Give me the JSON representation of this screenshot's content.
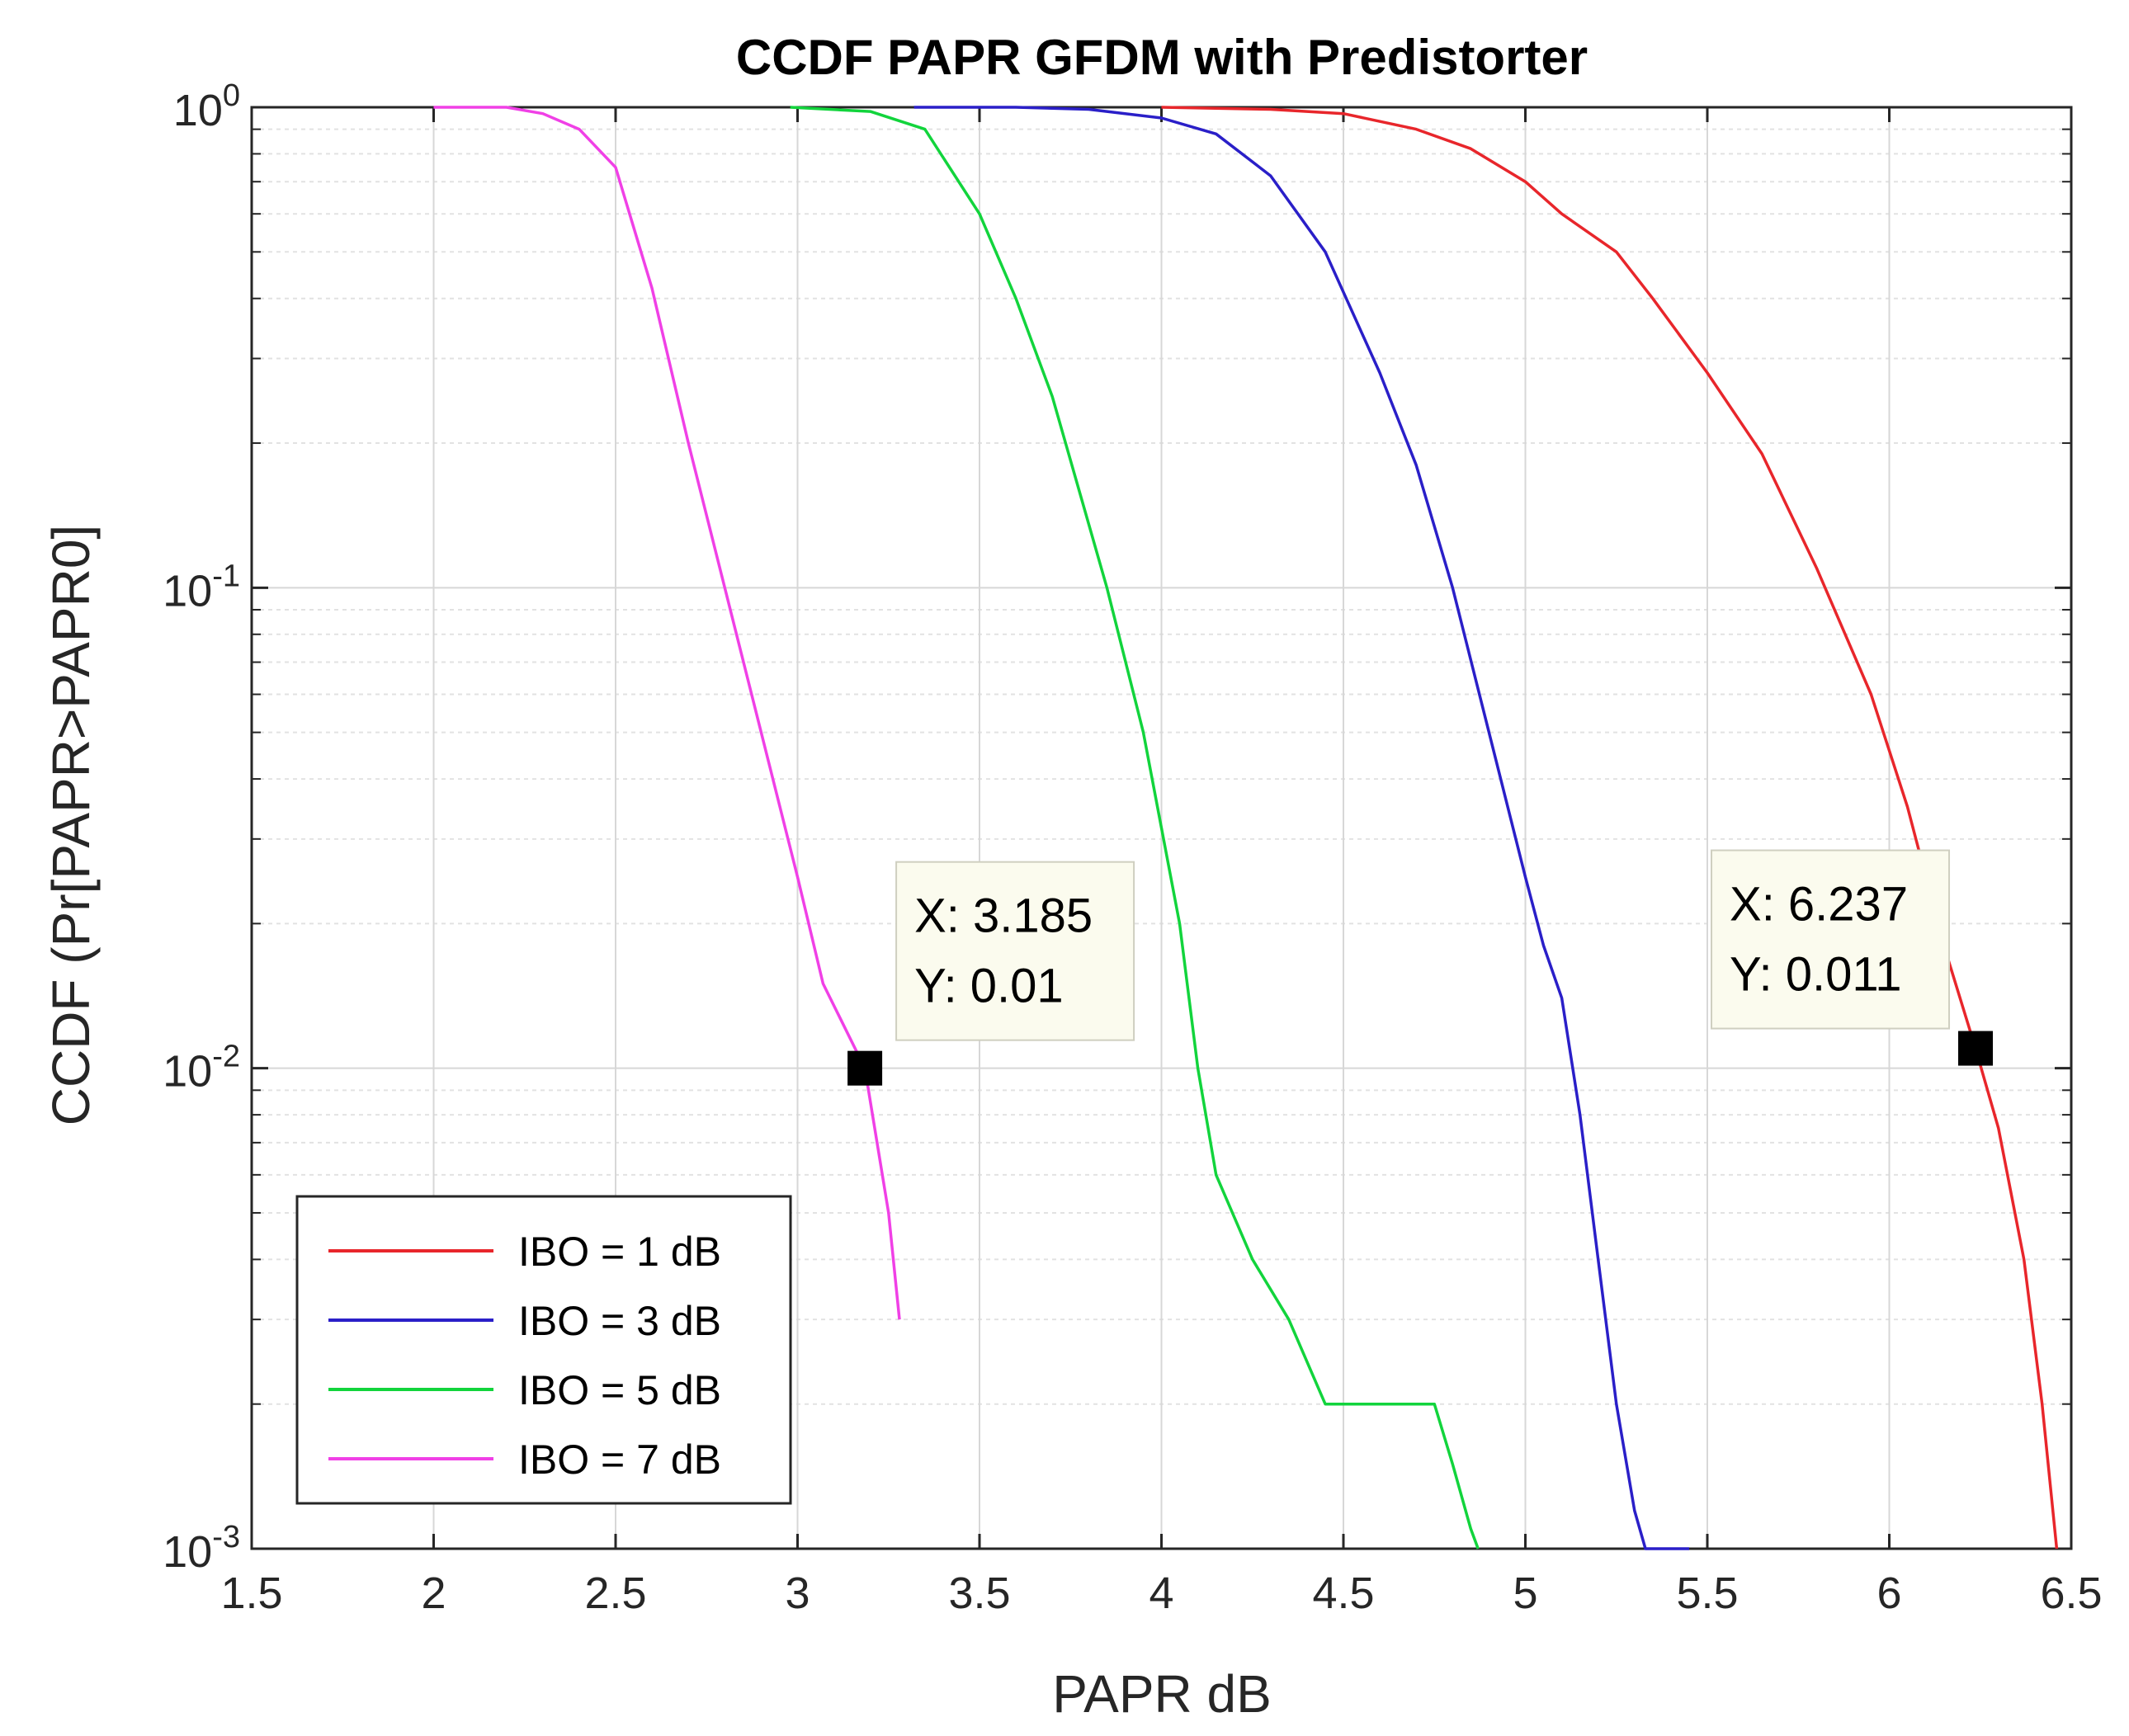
{
  "chart_data": {
    "type": "line",
    "title": "CCDF PAPR GFDM with Predistorter",
    "xlabel": "PAPR dB",
    "ylabel": "CCDF (Pr[PAPR>PAPR0]",
    "xlim": [
      1.5,
      6.5
    ],
    "ylim": [
      0.001,
      1
    ],
    "yscale": "log",
    "grid": true,
    "legend_position": "bottom-left",
    "x_ticks": [
      "1.5",
      "2",
      "2.5",
      "3",
      "3.5",
      "4",
      "4.5",
      "5",
      "5.5",
      "6",
      "6.5"
    ],
    "y_ticks": [
      {
        "base": "10",
        "exp": "0"
      },
      {
        "base": "10",
        "exp": "-1"
      },
      {
        "base": "10",
        "exp": "-2"
      },
      {
        "base": "10",
        "exp": "-3"
      }
    ],
    "series": [
      {
        "name": "IBO = 1 dB",
        "color": "#e8262b",
        "x": [
          4.0,
          4.3,
          4.5,
          4.7,
          4.85,
          5.0,
          5.1,
          5.25,
          5.35,
          5.5,
          5.65,
          5.8,
          5.95,
          6.05,
          6.15,
          6.237,
          6.3,
          6.37,
          6.42,
          6.46
        ],
        "y": [
          1.0,
          0.99,
          0.97,
          0.9,
          0.82,
          0.7,
          0.6,
          0.5,
          0.4,
          0.28,
          0.19,
          0.11,
          0.06,
          0.035,
          0.018,
          0.011,
          0.0075,
          0.004,
          0.002,
          0.001
        ]
      },
      {
        "name": "IBO = 3 dB",
        "color": "#2a1fc8",
        "x": [
          3.32,
          3.6,
          3.8,
          4.0,
          4.15,
          4.3,
          4.45,
          4.6,
          4.7,
          4.8,
          4.9,
          5.0,
          5.05,
          5.1,
          5.15,
          5.2,
          5.25,
          5.3,
          5.33,
          5.45
        ],
        "y": [
          1.0,
          1.0,
          0.99,
          0.95,
          0.88,
          0.72,
          0.5,
          0.28,
          0.18,
          0.1,
          0.05,
          0.025,
          0.018,
          0.014,
          0.008,
          0.004,
          0.002,
          0.0012,
          0.001,
          0.001
        ]
      },
      {
        "name": "IBO = 5 dB",
        "color": "#12d43c",
        "x": [
          2.98,
          3.2,
          3.35,
          3.5,
          3.6,
          3.7,
          3.85,
          3.95,
          4.05,
          4.1,
          4.15,
          4.25,
          4.35,
          4.45,
          4.5,
          4.75,
          4.8,
          4.85,
          4.87
        ],
        "y": [
          1.0,
          0.98,
          0.9,
          0.6,
          0.4,
          0.25,
          0.1,
          0.05,
          0.02,
          0.01,
          0.006,
          0.004,
          0.003,
          0.002,
          0.002,
          0.002,
          0.0015,
          0.0011,
          0.001
        ]
      },
      {
        "name": "IBO = 7 dB",
        "color": "#f040e6",
        "x": [
          2.0,
          2.2,
          2.3,
          2.4,
          2.5,
          2.6,
          2.7,
          2.8,
          2.9,
          3.0,
          3.07,
          3.185,
          3.25,
          3.28
        ],
        "y": [
          1.0,
          1.0,
          0.97,
          0.9,
          0.75,
          0.42,
          0.2,
          0.1,
          0.05,
          0.025,
          0.015,
          0.01,
          0.005,
          0.003
        ]
      }
    ],
    "annotations": [
      {
        "x": 3.185,
        "y": 0.01,
        "line1": "X: 3.185",
        "line2": "Y: 0.01"
      },
      {
        "x": 6.237,
        "y": 0.011,
        "line1": "X: 6.237",
        "line2": "Y: 0.011"
      }
    ]
  }
}
